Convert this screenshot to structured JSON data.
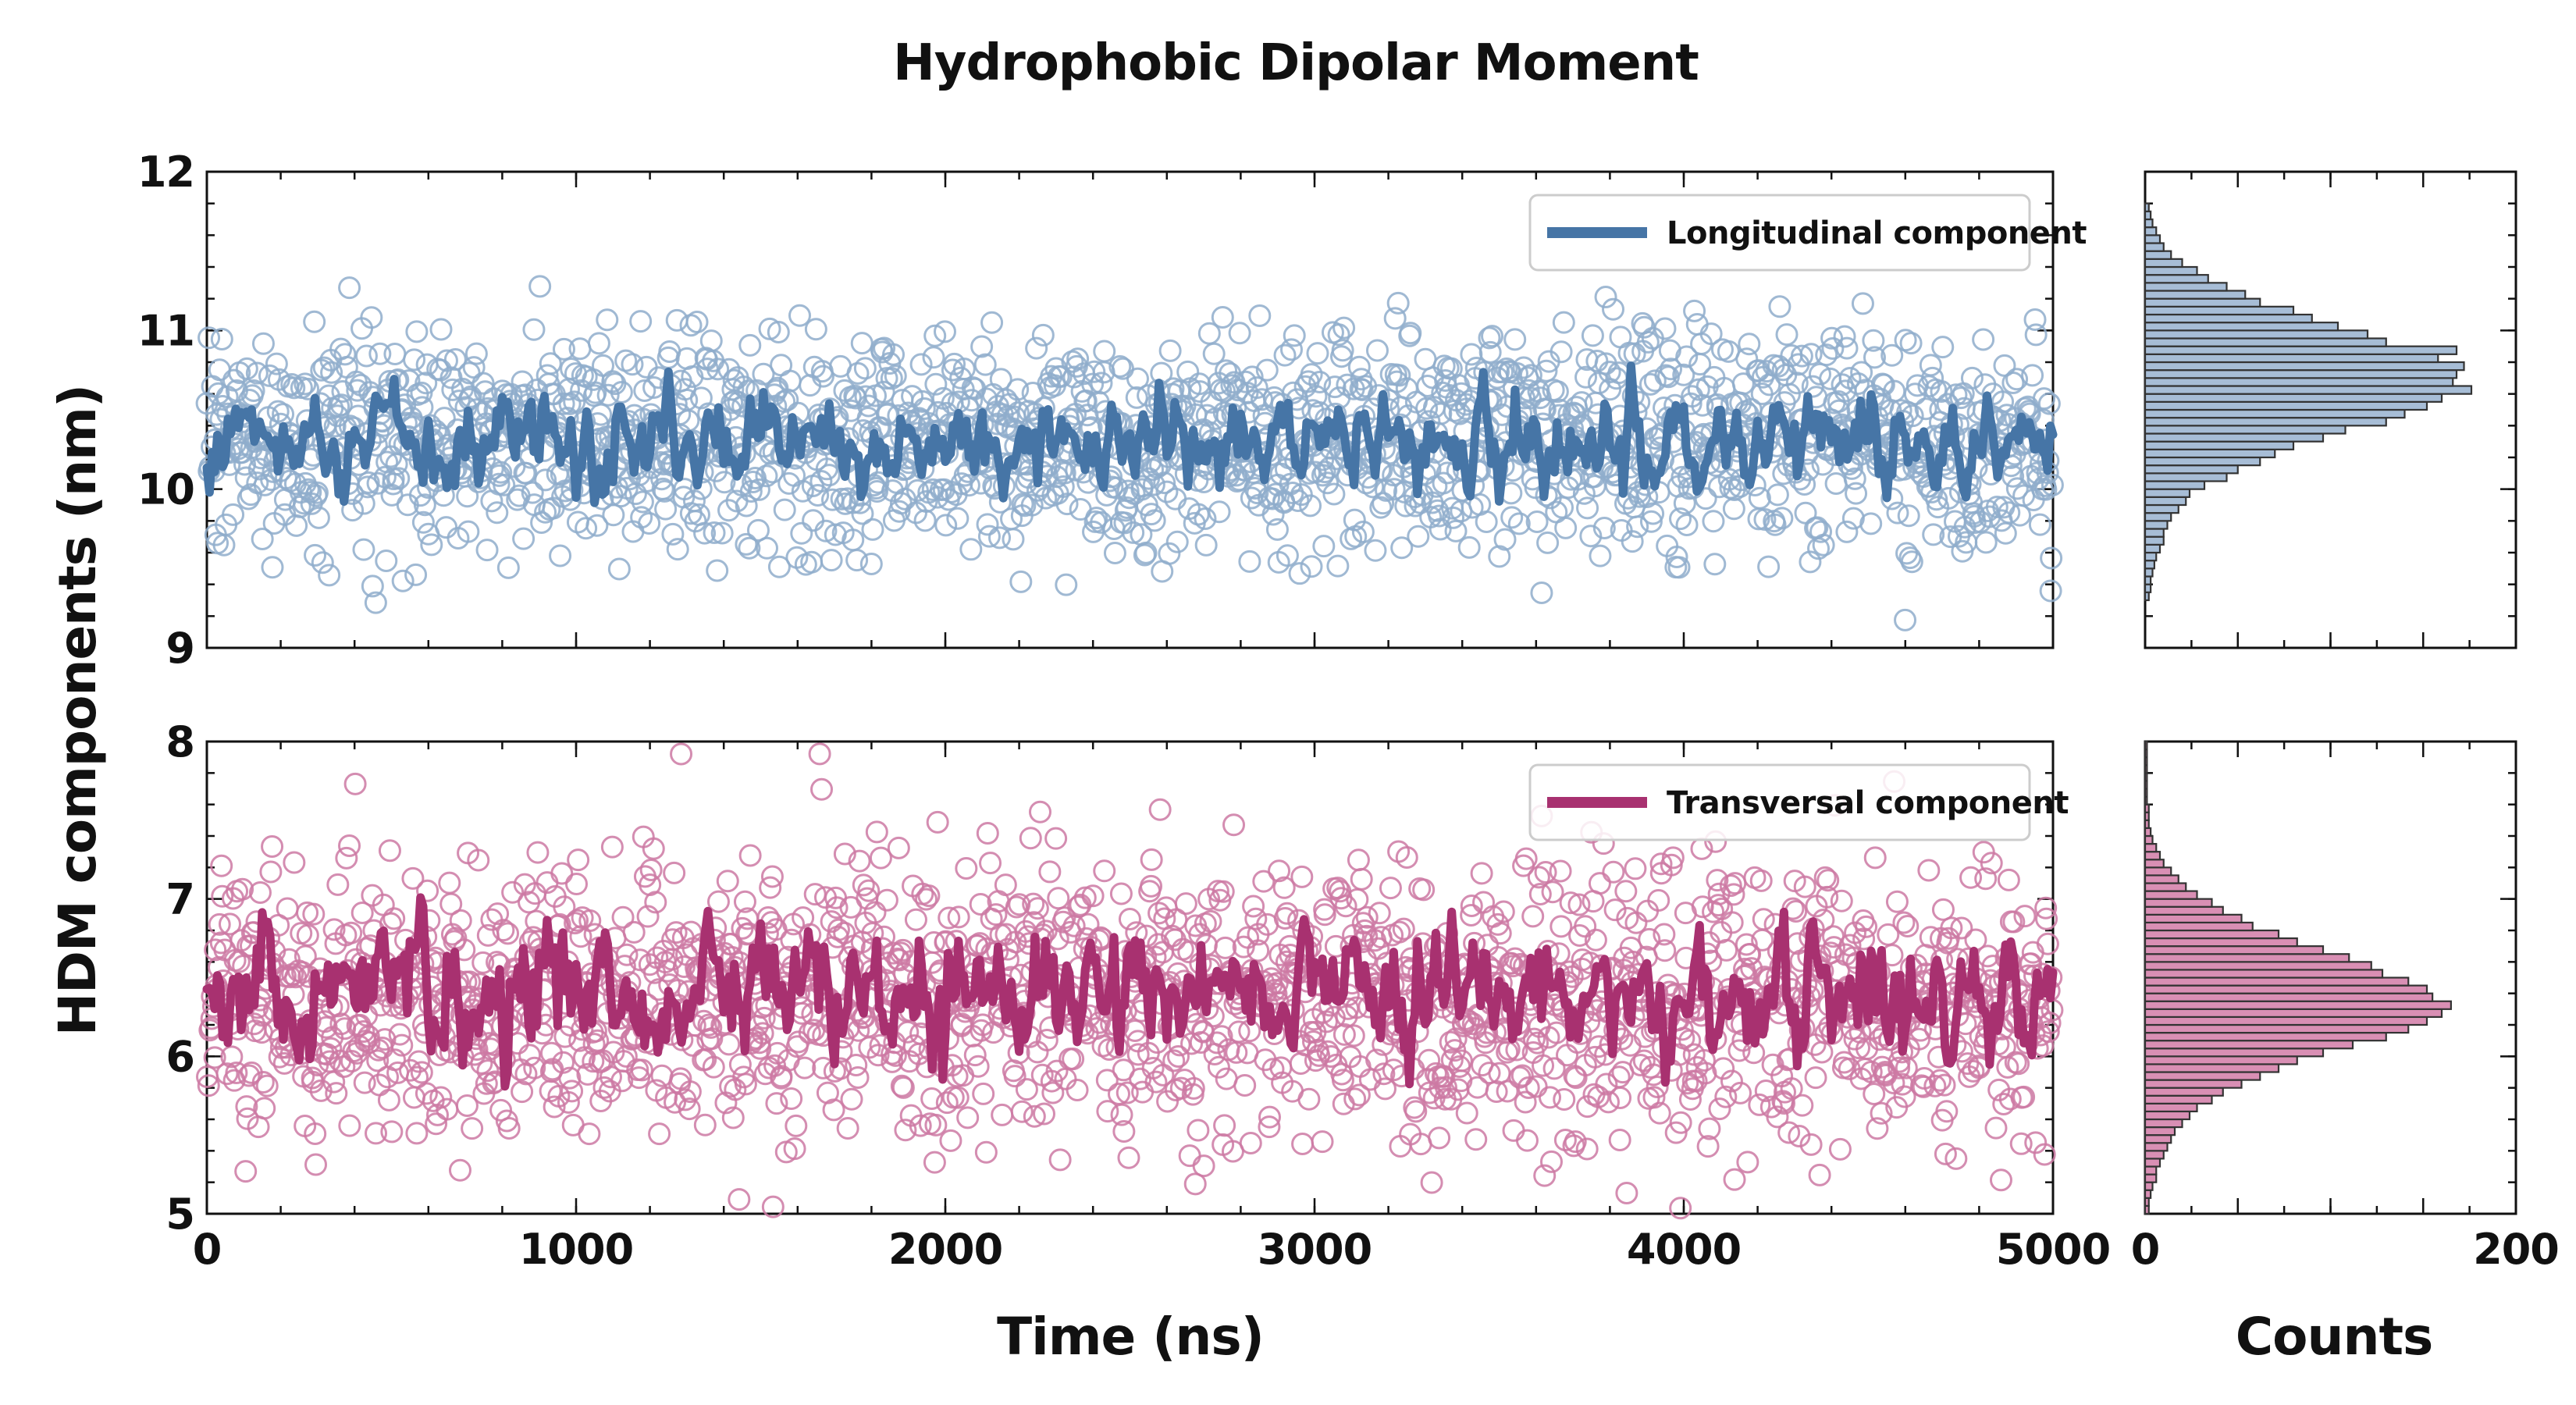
{
  "title": "Hydrophobic Dipolar Moment",
  "ylabel": "HDM components (nm)",
  "xlabel": "Time (ns)",
  "counts_label": "Counts",
  "colors": {
    "longitudinal": "#4675a6",
    "longitudinal_light": "#8fadcb",
    "transversal": "#a83170",
    "transversal_light": "#cd79a3",
    "hist_long_fill": "#a7bdd6",
    "hist_trans_fill": "#d98fb4"
  },
  "chart_data": [
    {
      "type": "scatter",
      "panel": "top-time",
      "title": "Hydrophobic Dipolar Moment",
      "xlabel": "Time (ns)",
      "ylabel": "HDM components (nm)",
      "xlim": [
        0,
        5000
      ],
      "ylim": [
        9,
        12
      ],
      "xticks": [
        0,
        1000,
        2000,
        3000,
        4000,
        5000
      ],
      "yticks": [
        9,
        10,
        11,
        12
      ],
      "x_tick_labels_visible": false,
      "legend_placement": "top-right",
      "grid": false,
      "series": [
        {
          "name": "Longitudinal component",
          "kind": "line",
          "mean": 10.3,
          "amplitude": 0.15
        },
        {
          "kind": "scatter",
          "mean": 10.3,
          "spread": 0.35,
          "count": 1800
        }
      ]
    },
    {
      "type": "scatter",
      "panel": "bottom-time",
      "xlabel": "Time (ns)",
      "xlim": [
        0,
        5000
      ],
      "ylim": [
        5,
        8
      ],
      "xticks": [
        0,
        1000,
        2000,
        3000,
        4000,
        5000
      ],
      "yticks": [
        5,
        6,
        7,
        8
      ],
      "legend_placement": "top-right",
      "grid": false,
      "series": [
        {
          "name": "Transversal component",
          "kind": "line",
          "mean": 6.35,
          "amplitude": 0.22
        },
        {
          "kind": "scatter",
          "mean": 6.35,
          "spread": 0.45,
          "count": 1800
        }
      ]
    },
    {
      "type": "bar",
      "panel": "top-hist",
      "orientation": "horizontal",
      "xlim": [
        0,
        200
      ],
      "ylim": [
        9,
        12
      ],
      "bin_start": 9.3,
      "bin_width": 0.05,
      "values": [
        2,
        3,
        3,
        4,
        5,
        6,
        8,
        10,
        10,
        12,
        14,
        18,
        22,
        24,
        32,
        44,
        50,
        62,
        70,
        80,
        96,
        108,
        130,
        140,
        152,
        160,
        176,
        166,
        168,
        172,
        158,
        168,
        130,
        120,
        104,
        90,
        80,
        62,
        54,
        44,
        34,
        28,
        20,
        14,
        10,
        8,
        6,
        4,
        3,
        2
      ]
    },
    {
      "type": "bar",
      "panel": "bottom-hist",
      "orientation": "horizontal",
      "xlabel": "Counts",
      "xlim": [
        0,
        200
      ],
      "xticks": [
        0,
        200
      ],
      "ylim": [
        5,
        8
      ],
      "bin_start": 5.0,
      "bin_width": 0.05,
      "values": [
        2,
        2,
        3,
        4,
        6,
        6,
        8,
        10,
        12,
        14,
        16,
        20,
        24,
        28,
        36,
        42,
        52,
        62,
        72,
        82,
        96,
        112,
        130,
        142,
        152,
        160,
        165,
        155,
        152,
        142,
        128,
        122,
        110,
        96,
        82,
        72,
        58,
        52,
        42,
        36,
        28,
        22,
        18,
        14,
        10,
        8,
        6,
        4,
        3,
        2,
        2,
        2,
        1,
        1,
        1,
        1,
        1,
        1,
        1,
        1
      ]
    }
  ]
}
